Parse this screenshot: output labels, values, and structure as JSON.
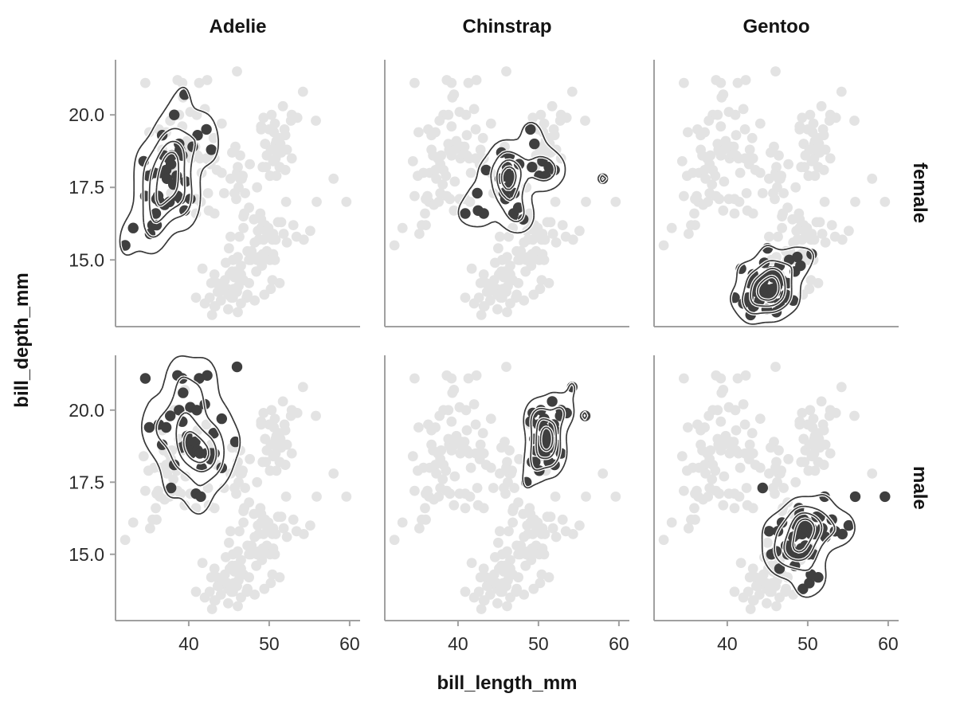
{
  "chart_data": {
    "type": "scatter",
    "title": "",
    "xlabel": "bill_length_mm",
    "ylabel": "bill_depth_mm",
    "col_facets": [
      "Adelie",
      "Chinstrap",
      "Gentoo"
    ],
    "row_facets": [
      "female",
      "male"
    ],
    "xlim": [
      30.9,
      61.3
    ],
    "ylim": [
      12.7,
      21.9
    ],
    "x_ticks": {
      "values": [
        40,
        50,
        60
      ],
      "labels": [
        "40",
        "50",
        "60"
      ]
    },
    "y_ticks": {
      "values": [
        20.0,
        17.5,
        15.0
      ],
      "labels": [
        "20.0",
        "17.5",
        "15.0"
      ]
    },
    "grid": "off",
    "legend": "none",
    "overlay": "kde density contour lines drawn over highlighted subset in each facet",
    "background_points": "full dataset repeated in light gray in every facet; facet subset in dark gray",
    "colors": {
      "background_point": "#e3e3e3",
      "highlight_point": "#3f3f3f",
      "contour_line": "#383838",
      "contour_halo": "#ffffff",
      "spine": "#a0a0a0",
      "tick_label": "#2b2b2b",
      "title_text": "#141414"
    },
    "groups": [
      {
        "species": "Adelie",
        "sex": "female",
        "points": [
          [
            32.1,
            15.5
          ],
          [
            33.1,
            16.1
          ],
          [
            34.4,
            18.4
          ],
          [
            34.6,
            17.2
          ],
          [
            35.0,
            17.9
          ],
          [
            35.2,
            15.9
          ],
          [
            35.5,
            16.2
          ],
          [
            35.7,
            18.0
          ],
          [
            35.9,
            16.6
          ],
          [
            36.0,
            17.1
          ],
          [
            36.0,
            16.2
          ],
          [
            36.2,
            17.2
          ],
          [
            36.4,
            17.0
          ],
          [
            36.5,
            18.0
          ],
          [
            36.7,
            19.3
          ],
          [
            36.9,
            18.6
          ],
          [
            37.0,
            16.9
          ],
          [
            37.2,
            18.1
          ],
          [
            37.3,
            17.8
          ],
          [
            37.5,
            18.5
          ],
          [
            37.6,
            17.0
          ],
          [
            37.8,
            18.3
          ],
          [
            37.9,
            18.6
          ],
          [
            38.1,
            17.6
          ],
          [
            38.2,
            20.0
          ],
          [
            38.5,
            17.9
          ],
          [
            38.6,
            17.2
          ],
          [
            38.8,
            19.0
          ],
          [
            38.9,
            18.8
          ],
          [
            39.0,
            17.1
          ],
          [
            39.2,
            18.6
          ],
          [
            39.5,
            16.7
          ],
          [
            39.5,
            20.7
          ],
          [
            39.6,
            17.7
          ],
          [
            40.2,
            17.1
          ],
          [
            40.5,
            18.9
          ],
          [
            41.1,
            19.3
          ],
          [
            42.2,
            19.5
          ],
          [
            42.8,
            18.8
          ]
        ]
      },
      {
        "species": "Adelie",
        "sex": "male",
        "points": [
          [
            34.6,
            21.1
          ],
          [
            35.1,
            19.4
          ],
          [
            36.3,
            19.5
          ],
          [
            36.7,
            18.8
          ],
          [
            37.2,
            19.4
          ],
          [
            37.7,
            19.8
          ],
          [
            37.8,
            17.3
          ],
          [
            38.2,
            18.1
          ],
          [
            38.6,
            21.2
          ],
          [
            38.8,
            20.0
          ],
          [
            39.1,
            18.7
          ],
          [
            39.2,
            21.1
          ],
          [
            39.2,
            19.6
          ],
          [
            39.3,
            20.6
          ],
          [
            39.6,
            18.8
          ],
          [
            39.8,
            19.1
          ],
          [
            40.1,
            18.9
          ],
          [
            40.2,
            20.1
          ],
          [
            40.3,
            18.5
          ],
          [
            40.6,
            18.6
          ],
          [
            40.8,
            18.9
          ],
          [
            40.9,
            17.1
          ],
          [
            41.0,
            20.0
          ],
          [
            41.1,
            18.6
          ],
          [
            41.3,
            21.1
          ],
          [
            41.4,
            18.5
          ],
          [
            41.5,
            17.0
          ],
          [
            41.6,
            18.0
          ],
          [
            42.0,
            20.2
          ],
          [
            42.2,
            18.5
          ],
          [
            42.3,
            21.2
          ],
          [
            42.7,
            18.3
          ],
          [
            42.8,
            18.5
          ],
          [
            43.1,
            19.2
          ],
          [
            43.2,
            18.5
          ],
          [
            44.1,
            18.0
          ],
          [
            44.1,
            19.7
          ],
          [
            45.8,
            18.9
          ],
          [
            46.0,
            21.5
          ]
        ]
      },
      {
        "species": "Chinstrap",
        "sex": "female",
        "points": [
          [
            40.9,
            16.6
          ],
          [
            42.4,
            17.3
          ],
          [
            42.5,
            16.7
          ],
          [
            43.2,
            16.6
          ],
          [
            43.5,
            18.1
          ],
          [
            45.2,
            17.8
          ],
          [
            45.4,
            18.7
          ],
          [
            45.7,
            17.3
          ],
          [
            45.9,
            17.1
          ],
          [
            46.0,
            18.0
          ],
          [
            46.1,
            18.2
          ],
          [
            46.2,
            17.5
          ],
          [
            46.4,
            17.8
          ],
          [
            46.4,
            18.6
          ],
          [
            46.5,
            17.9
          ],
          [
            46.6,
            17.8
          ],
          [
            46.7,
            17.9
          ],
          [
            46.8,
            16.5
          ],
          [
            46.9,
            16.6
          ],
          [
            47.0,
            17.3
          ],
          [
            47.5,
            16.8
          ],
          [
            47.6,
            18.3
          ],
          [
            48.1,
            16.4
          ],
          [
            49.0,
            19.5
          ],
          [
            49.2,
            18.2
          ],
          [
            49.5,
            19.0
          ],
          [
            50.1,
            17.9
          ],
          [
            50.5,
            18.4
          ],
          [
            50.9,
            17.9
          ],
          [
            51.3,
            18.2
          ],
          [
            52.0,
            18.1
          ],
          [
            58.0,
            17.8
          ]
        ]
      },
      {
        "species": "Chinstrap",
        "sex": "male",
        "points": [
          [
            48.5,
            17.5
          ],
          [
            49.0,
            19.6
          ],
          [
            49.2,
            18.2
          ],
          [
            49.3,
            19.9
          ],
          [
            49.5,
            19.0
          ],
          [
            49.6,
            18.2
          ],
          [
            49.7,
            18.6
          ],
          [
            50.0,
            19.5
          ],
          [
            50.1,
            17.9
          ],
          [
            50.2,
            18.8
          ],
          [
            50.3,
            20.0
          ],
          [
            50.6,
            19.4
          ],
          [
            50.7,
            19.7
          ],
          [
            50.8,
            18.5
          ],
          [
            50.8,
            19.0
          ],
          [
            50.9,
            19.1
          ],
          [
            51.0,
            18.8
          ],
          [
            51.3,
            19.2
          ],
          [
            51.3,
            18.2
          ],
          [
            51.4,
            19.0
          ],
          [
            51.5,
            18.7
          ],
          [
            51.7,
            20.3
          ],
          [
            51.9,
            19.5
          ],
          [
            52.0,
            18.1
          ],
          [
            52.0,
            19.3
          ],
          [
            52.2,
            18.8
          ],
          [
            52.7,
            19.8
          ],
          [
            52.8,
            20.0
          ],
          [
            52.8,
            18.5
          ],
          [
            53.5,
            19.9
          ],
          [
            54.2,
            20.8
          ],
          [
            55.8,
            19.8
          ]
        ]
      },
      {
        "species": "Gentoo",
        "sex": "female",
        "points": [
          [
            40.9,
            13.7
          ],
          [
            41.7,
            14.7
          ],
          [
            42.0,
            13.5
          ],
          [
            42.6,
            13.7
          ],
          [
            42.8,
            14.2
          ],
          [
            42.9,
            13.1
          ],
          [
            43.2,
            13.4
          ],
          [
            43.2,
            14.5
          ],
          [
            43.3,
            13.4
          ],
          [
            43.5,
            14.2
          ],
          [
            43.6,
            13.9
          ],
          [
            43.8,
            13.9
          ],
          [
            44.0,
            13.6
          ],
          [
            44.2,
            14.1
          ],
          [
            44.5,
            14.3
          ],
          [
            44.6,
            14.9
          ],
          [
            44.8,
            14.0
          ],
          [
            44.9,
            13.3
          ],
          [
            44.9,
            13.8
          ],
          [
            45.0,
            15.4
          ],
          [
            45.1,
            14.5
          ],
          [
            45.2,
            13.8
          ],
          [
            45.3,
            13.7
          ],
          [
            45.4,
            14.6
          ],
          [
            45.5,
            13.7
          ],
          [
            45.6,
            14.0
          ],
          [
            45.7,
            14.4
          ],
          [
            45.8,
            14.6
          ],
          [
            46.0,
            13.9
          ],
          [
            46.1,
            13.2
          ],
          [
            46.2,
            14.1
          ],
          [
            46.4,
            14.4
          ],
          [
            46.5,
            13.5
          ],
          [
            46.5,
            14.8
          ],
          [
            46.8,
            14.3
          ],
          [
            47.2,
            13.7
          ],
          [
            47.3,
            13.8
          ],
          [
            47.5,
            14.2
          ],
          [
            47.7,
            15.0
          ],
          [
            48.2,
            13.6
          ],
          [
            48.4,
            14.6
          ],
          [
            48.7,
            15.1
          ],
          [
            49.1,
            14.8
          ],
          [
            50.5,
            15.2
          ]
        ]
      },
      {
        "species": "Gentoo",
        "sex": "male",
        "points": [
          [
            44.4,
            17.3
          ],
          [
            45.2,
            15.8
          ],
          [
            45.5,
            15.0
          ],
          [
            46.1,
            15.1
          ],
          [
            46.3,
            15.8
          ],
          [
            46.5,
            14.5
          ],
          [
            46.8,
            16.1
          ],
          [
            47.3,
            15.3
          ],
          [
            47.5,
            15.0
          ],
          [
            47.8,
            15.3
          ],
          [
            48.1,
            15.1
          ],
          [
            48.2,
            15.6
          ],
          [
            48.4,
            14.6
          ],
          [
            48.5,
            15.0
          ],
          [
            48.6,
            16.0
          ],
          [
            48.7,
            15.7
          ],
          [
            48.9,
            16.6
          ],
          [
            49.0,
            16.1
          ],
          [
            49.0,
            16.4
          ],
          [
            49.1,
            15.0
          ],
          [
            49.2,
            15.2
          ],
          [
            49.3,
            15.7
          ],
          [
            49.4,
            13.8
          ],
          [
            49.5,
            16.2
          ],
          [
            49.6,
            16.0
          ],
          [
            49.7,
            15.3
          ],
          [
            49.8,
            15.9
          ],
          [
            49.9,
            16.1
          ],
          [
            50.0,
            15.2
          ],
          [
            50.1,
            15.0
          ],
          [
            50.2,
            14.0
          ],
          [
            50.4,
            15.7
          ],
          [
            50.4,
            14.3
          ],
          [
            50.5,
            15.9
          ],
          [
            50.7,
            15.0
          ],
          [
            50.8,
            15.7
          ],
          [
            51.1,
            16.3
          ],
          [
            51.3,
            14.2
          ],
          [
            51.5,
            16.3
          ],
          [
            51.8,
            15.9
          ],
          [
            52.1,
            17.0
          ],
          [
            52.2,
            15.6
          ],
          [
            53.0,
            16.2
          ],
          [
            53.4,
            15.8
          ],
          [
            54.3,
            15.7
          ],
          [
            55.1,
            16.0
          ],
          [
            55.9,
            17.0
          ],
          [
            59.6,
            17.0
          ]
        ]
      }
    ]
  }
}
